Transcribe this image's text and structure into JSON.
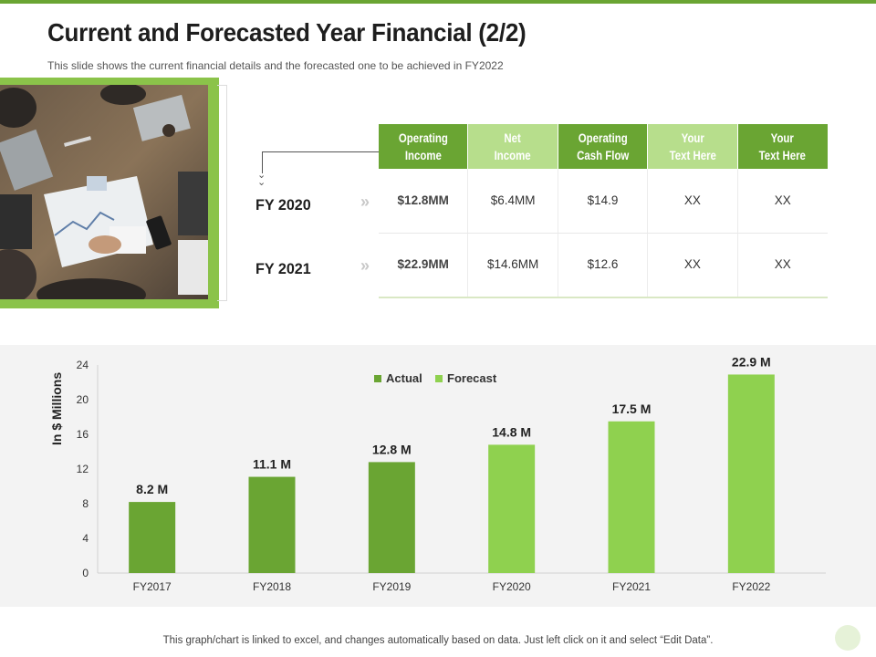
{
  "slide": {
    "title": "Current and Forecasted Year Financial (2/2)",
    "subtitle": "This slide shows the current financial details and the forecasted one to be achieved in FY2022",
    "footer": "This graph/chart is linked to excel,  and changes automatically based on data. Just left click on it and select “Edit Data”."
  },
  "colors": {
    "accent": "#6aa533",
    "accent_light": "#8fd14f",
    "header_light": "#b7de8c",
    "panel": "#f3f3f3"
  },
  "table": {
    "headers": [
      {
        "line1": "Operating",
        "line2": "Income",
        "style": "dark"
      },
      {
        "line1": "Net",
        "line2": "Income",
        "style": "light"
      },
      {
        "line1": "Operating",
        "line2": "Cash Flow",
        "style": "dark"
      },
      {
        "line1": "Your",
        "line2": "Text Here",
        "style": "light"
      },
      {
        "line1": "Your",
        "line2": "Text Here",
        "style": "dark"
      }
    ],
    "rows": [
      {
        "label": "FY 2020",
        "cells": [
          "$12.8MM",
          "$6.4MM",
          "$14.9",
          "XX",
          "XX"
        ]
      },
      {
        "label": "FY 2021",
        "cells": [
          "$22.9MM",
          "$14.6MM",
          "$12.6",
          "XX",
          "XX"
        ]
      }
    ]
  },
  "chart_data": {
    "type": "bar",
    "categories": [
      "FY2017",
      "FY2018",
      "FY2019",
      "FY2020",
      "FY2021",
      "FY2022"
    ],
    "values": [
      8.2,
      11.1,
      12.8,
      14.8,
      17.5,
      22.9
    ],
    "data_labels": [
      "8.2 M",
      "11.1 M",
      "12.8 M",
      "14.8 M",
      "17.5 M",
      "22.9 M"
    ],
    "series_type": [
      "Actual",
      "Actual",
      "Actual",
      "Forecast",
      "Forecast",
      "Forecast"
    ],
    "legend": [
      {
        "name": "Actual",
        "color": "#6aa533"
      },
      {
        "name": "Forecast",
        "color": "#8fd14f"
      }
    ],
    "legend_position": "top-center",
    "ylabel": "In $ Millions",
    "ylim": [
      0,
      24
    ],
    "yticks": [
      0,
      4,
      8,
      12,
      16,
      20,
      24
    ],
    "grid": false
  }
}
